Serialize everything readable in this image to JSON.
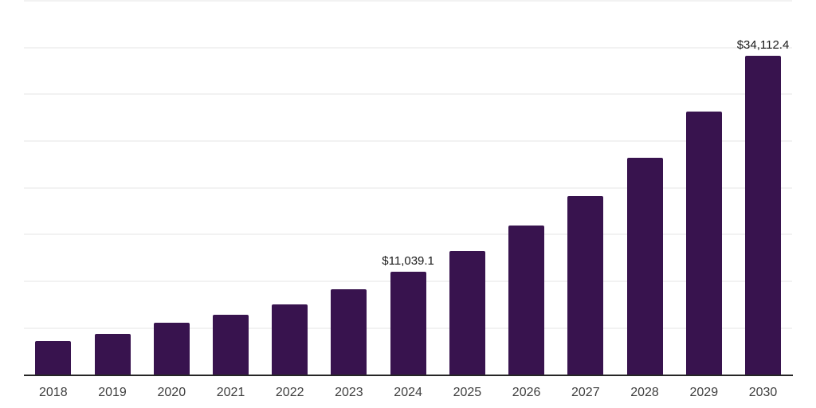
{
  "chart": {
    "background_color": "#ffffff",
    "bar_color": "#38134E",
    "gridline_color": "#f2f2f2",
    "axis_line_color": "#262626",
    "category_label_color": "#404040",
    "data_label_color": "#1a1a1a"
  },
  "chart_data": {
    "type": "bar",
    "title": "",
    "xlabel": "",
    "ylabel": "",
    "categories": [
      "2018",
      "2019",
      "2020",
      "2021",
      "2022",
      "2023",
      "2024",
      "2025",
      "2026",
      "2027",
      "2028",
      "2029",
      "2030"
    ],
    "values": [
      3600,
      4370,
      5560,
      6440,
      7520,
      9190,
      11039.1,
      13250,
      15950,
      19150,
      23190,
      28150,
      34112.4
    ],
    "data_labels": [
      {
        "category": "2024",
        "text": "$11,039.1"
      },
      {
        "category": "2030",
        "text": "$34,112.4"
      }
    ],
    "ylim": [
      0,
      40000
    ],
    "gridline_step": 5000,
    "grid": "horizontal",
    "y_axis_labels_visible": false,
    "legend": "none"
  }
}
